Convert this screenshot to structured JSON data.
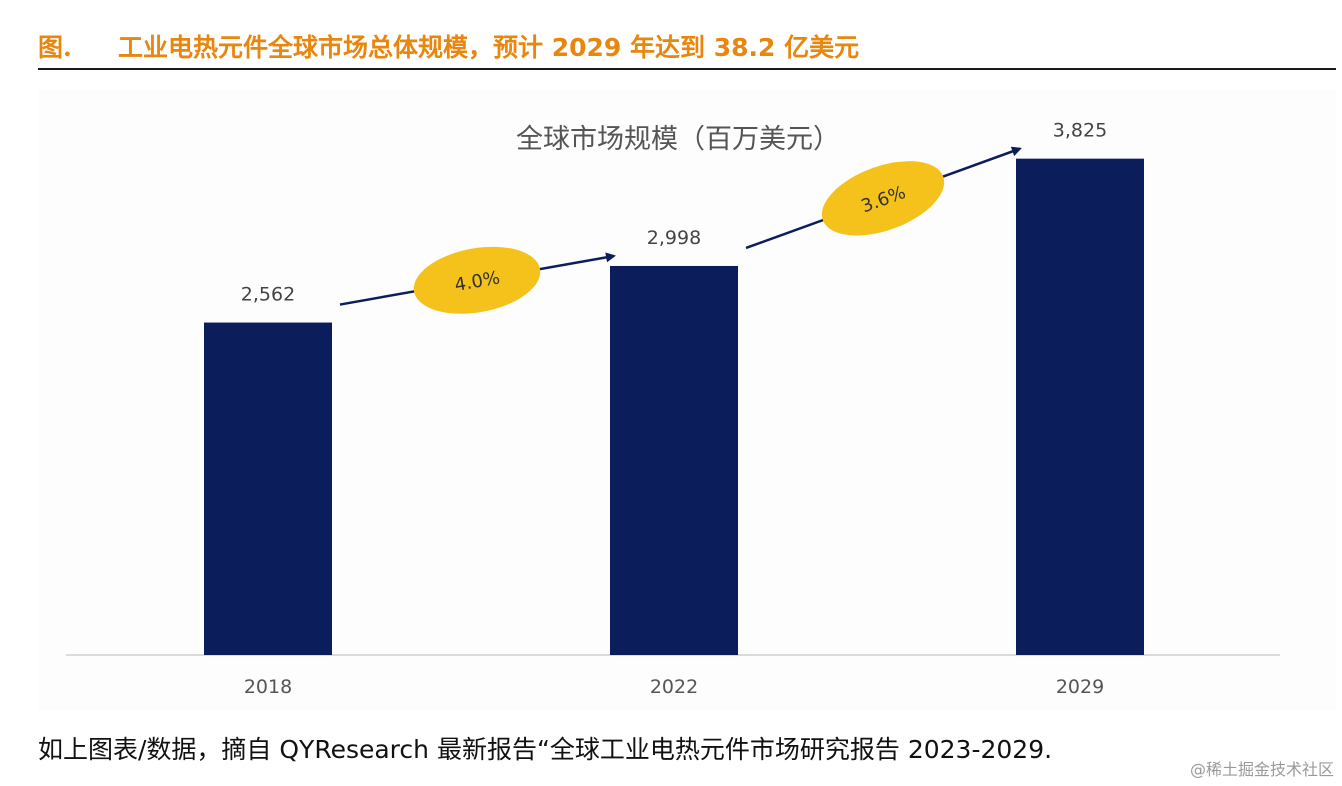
{
  "figure": {
    "label": "图.",
    "title": "工业电热元件全球市场总体规模，预计 2029 年达到 38.2 亿美元"
  },
  "chart_data": {
    "type": "bar",
    "title": "全球市场规模（百万美元）",
    "categories": [
      "2018",
      "2022",
      "2029"
    ],
    "values": [
      2562,
      2998,
      3825
    ],
    "data_labels": [
      "2,562",
      "2,998",
      "3,825"
    ],
    "ylim": [
      0,
      4200
    ],
    "grid": false,
    "legend": "none",
    "bar_color": "#0c1d5c",
    "annotations": [
      {
        "text": "4.0%",
        "from": "2018",
        "to": "2022",
        "shape": "ellipse",
        "color": "#f5c21b"
      },
      {
        "text": "3.6%",
        "from": "2022",
        "to": "2029",
        "shape": "ellipse",
        "color": "#f5c21b"
      }
    ],
    "arrow_color": "#0c1d5c"
  },
  "caption": "如上图表/数据，摘自 QYResearch 最新报告“全球工业电热元件市场研究报告 2023-2029.",
  "watermark": "@稀土掘金技术社区"
}
